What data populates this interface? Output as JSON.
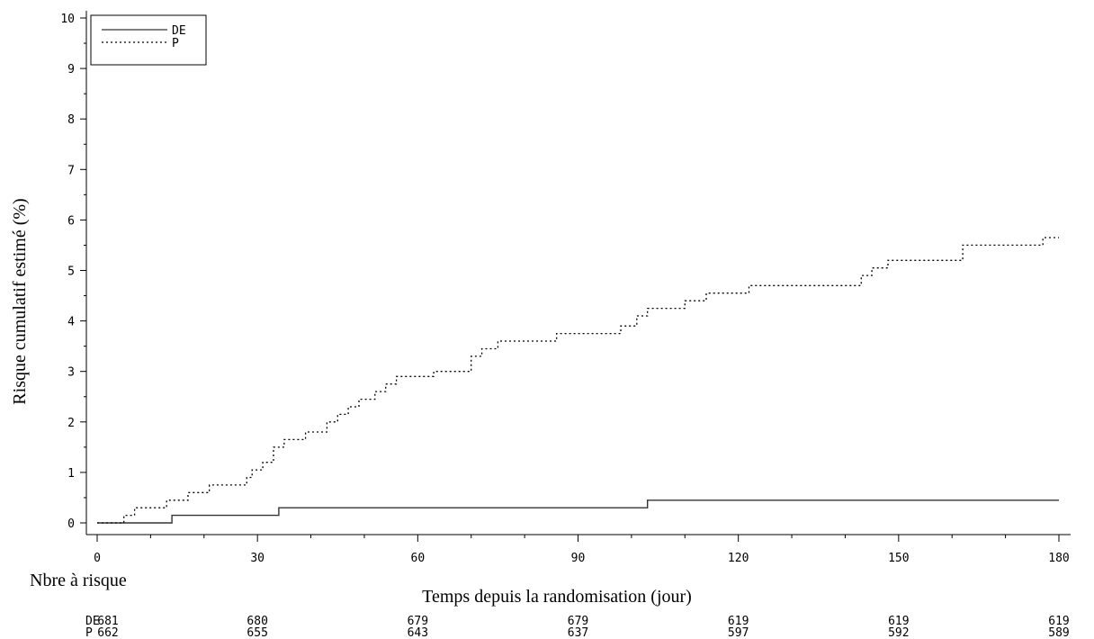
{
  "chart_data": {
    "type": "line",
    "title": "",
    "xlabel": "Temps depuis la randomisation (jour)",
    "ylabel": "Risque cumulatif estimé (%)",
    "xlim": [
      0,
      180
    ],
    "ylim": [
      0,
      10
    ],
    "x_ticks": [
      0,
      30,
      60,
      90,
      120,
      150,
      180
    ],
    "y_ticks": [
      0,
      1,
      2,
      3,
      4,
      5,
      6,
      7,
      8,
      9,
      10
    ],
    "grid": false,
    "legend_position": "top-left",
    "series": [
      {
        "name": "DE",
        "style": "solid",
        "points": [
          [
            0,
            0
          ],
          [
            14,
            0
          ],
          [
            14,
            0.15
          ],
          [
            34,
            0.15
          ],
          [
            34,
            0.3
          ],
          [
            103,
            0.3
          ],
          [
            103,
            0.45
          ],
          [
            180,
            0.45
          ]
        ]
      },
      {
        "name": "P",
        "style": "dotted",
        "points": [
          [
            0,
            0
          ],
          [
            5,
            0
          ],
          [
            5,
            0.15
          ],
          [
            7,
            0.15
          ],
          [
            7,
            0.3
          ],
          [
            13,
            0.3
          ],
          [
            13,
            0.45
          ],
          [
            17,
            0.45
          ],
          [
            17,
            0.6
          ],
          [
            21,
            0.6
          ],
          [
            21,
            0.75
          ],
          [
            28,
            0.75
          ],
          [
            28,
            0.9
          ],
          [
            29,
            0.9
          ],
          [
            29,
            1.05
          ],
          [
            31,
            1.05
          ],
          [
            31,
            1.2
          ],
          [
            33,
            1.2
          ],
          [
            33,
            1.5
          ],
          [
            35,
            1.5
          ],
          [
            35,
            1.65
          ],
          [
            39,
            1.65
          ],
          [
            39,
            1.8
          ],
          [
            43,
            1.8
          ],
          [
            43,
            2.0
          ],
          [
            45,
            2.0
          ],
          [
            45,
            2.15
          ],
          [
            47,
            2.15
          ],
          [
            47,
            2.3
          ],
          [
            49,
            2.3
          ],
          [
            49,
            2.45
          ],
          [
            52,
            2.45
          ],
          [
            52,
            2.6
          ],
          [
            54,
            2.6
          ],
          [
            54,
            2.75
          ],
          [
            56,
            2.75
          ],
          [
            56,
            2.9
          ],
          [
            63,
            2.9
          ],
          [
            63,
            3.0
          ],
          [
            70,
            3.0
          ],
          [
            70,
            3.3
          ],
          [
            72,
            3.3
          ],
          [
            72,
            3.45
          ],
          [
            75,
            3.45
          ],
          [
            75,
            3.6
          ],
          [
            86,
            3.6
          ],
          [
            86,
            3.75
          ],
          [
            98,
            3.75
          ],
          [
            98,
            3.9
          ],
          [
            101,
            3.9
          ],
          [
            101,
            4.1
          ],
          [
            103,
            4.1
          ],
          [
            103,
            4.25
          ],
          [
            110,
            4.25
          ],
          [
            110,
            4.4
          ],
          [
            114,
            4.4
          ],
          [
            114,
            4.55
          ],
          [
            122,
            4.55
          ],
          [
            122,
            4.7
          ],
          [
            143,
            4.7
          ],
          [
            143,
            4.9
          ],
          [
            145,
            4.9
          ],
          [
            145,
            5.05
          ],
          [
            148,
            5.05
          ],
          [
            148,
            5.2
          ],
          [
            162,
            5.2
          ],
          [
            162,
            5.5
          ],
          [
            177,
            5.5
          ],
          [
            177,
            5.65
          ],
          [
            180,
            5.65
          ]
        ]
      }
    ],
    "at_risk": {
      "title": "Nbre à risque",
      "rows": [
        {
          "label": "DE",
          "values": [
            "681",
            "680",
            "679",
            "679",
            "619",
            "619",
            "619"
          ]
        },
        {
          "label": "P",
          "values": [
            "662",
            "655",
            "643",
            "637",
            "597",
            "592",
            "589"
          ]
        }
      ]
    }
  }
}
